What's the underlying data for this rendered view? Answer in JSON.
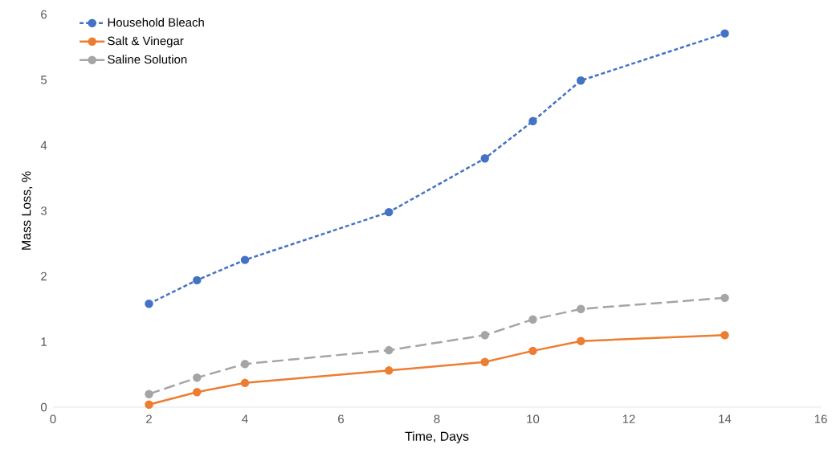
{
  "chart_data": {
    "type": "line",
    "xlabel": "Time, Days",
    "ylabel": "Mass Loss, %",
    "x": [
      2,
      3,
      4,
      7,
      9,
      10,
      11,
      14
    ],
    "series": [
      {
        "name": "Household Bleach",
        "color": "#4472c4",
        "marker": "circle",
        "line_style": "dotted",
        "values": [
          1.58,
          1.94,
          2.25,
          2.98,
          3.8,
          4.37,
          4.99,
          5.71
        ]
      },
      {
        "name": "Salt & Vinegar",
        "color": "#ed7d31",
        "marker": "circle",
        "line_style": "solid",
        "values": [
          0.04,
          0.23,
          0.37,
          0.56,
          0.69,
          0.86,
          1.01,
          1.1
        ]
      },
      {
        "name": "Saline Solution",
        "color": "#a5a5a5",
        "marker": "circle",
        "line_style": "dashed",
        "values": [
          0.2,
          0.45,
          0.66,
          0.87,
          1.1,
          1.34,
          1.5,
          1.67
        ]
      }
    ],
    "xlim": [
      0,
      16
    ],
    "xticks": [
      0,
      2,
      4,
      6,
      8,
      10,
      12,
      14,
      16
    ],
    "ylim": [
      0,
      6
    ],
    "yticks": [
      0,
      1,
      2,
      3,
      4,
      5,
      6
    ],
    "grid": false,
    "legend": "top left"
  }
}
